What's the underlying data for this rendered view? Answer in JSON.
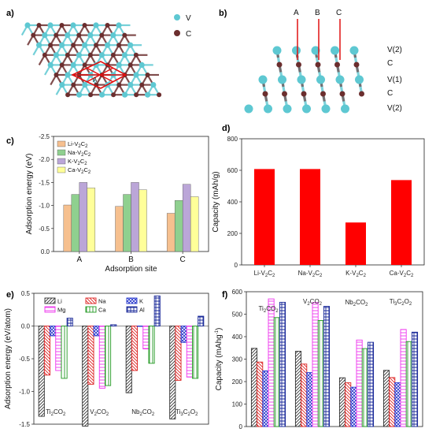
{
  "panels": {
    "a": {
      "label": "a)",
      "legend": [
        {
          "name": "V",
          "color": "#5ec8d2"
        },
        {
          "name": "C",
          "color": "#6b2e2e"
        }
      ],
      "site_label": "A"
    },
    "b": {
      "label": "b)",
      "sites": [
        "A",
        "B",
        "C"
      ],
      "layers": [
        "V(2)",
        "C",
        "V(1)",
        "C",
        "V(2)"
      ]
    }
  },
  "colors": {
    "V": "#5ec8d2",
    "C": "#6b2e2e",
    "capacity_bar": "#ff0000"
  },
  "chart_data": [
    {
      "panel": "c)",
      "type": "bar",
      "xlabel": "Adsorption site",
      "ylabel": "Adsorption energy (eV)",
      "categories": [
        "A",
        "B",
        "C"
      ],
      "ylim": [
        0.0,
        -2.5
      ],
      "yticks": [
        "-2.5",
        "-2.0",
        "-1.5",
        "-1.0",
        "-0.5",
        "0.0"
      ],
      "legend_position": "top-left",
      "series": [
        {
          "name": "Li-V",
          "sub": "2",
          "name2": "C",
          "sub2": "2",
          "color": "#f6c08f",
          "values": [
            -1.01,
            -0.98,
            -0.83
          ]
        },
        {
          "name": "Na-V",
          "sub": "2",
          "name2": "C",
          "sub2": "2",
          "color": "#8fd08f",
          "values": [
            -1.24,
            -1.24,
            -1.11
          ]
        },
        {
          "name": "K-V",
          "sub": "2",
          "name2": "C",
          "sub2": "2",
          "color": "#bba6d8",
          "values": [
            -1.5,
            -1.5,
            -1.46
          ]
        },
        {
          "name": "Ca-V",
          "sub": "2",
          "name2": "C",
          "sub2": "2",
          "color": "#ffff99",
          "values": [
            -1.38,
            -1.34,
            -1.19
          ]
        }
      ]
    },
    {
      "panel": "d)",
      "type": "bar",
      "ylabel": "Capacity (mAh/g)",
      "ylim": [
        0,
        800
      ],
      "yticks": [
        "0",
        "200",
        "400",
        "600",
        "800"
      ],
      "categories": [
        {
          "pre": "Li-V",
          "sub": "2",
          "mid": "C",
          "sub2": "2"
        },
        {
          "pre": "Na-V",
          "sub": "2",
          "mid": "C",
          "sub2": "2"
        },
        {
          "pre": "K-V",
          "sub": "2",
          "mid": "C",
          "sub2": "2"
        },
        {
          "pre": "Ca-V",
          "sub": "2",
          "mid": "C",
          "sub2": "2"
        }
      ],
      "values": [
        608,
        608,
        269,
        538
      ]
    },
    {
      "panel": "e)",
      "type": "bar",
      "ylabel": "Adsorption energy (eV/atom)",
      "ylim": [
        -1.5,
        0.5
      ],
      "yticks": [
        "0.5",
        "0.0",
        "-0.5",
        "-1.0",
        "-1.5"
      ],
      "categories": [
        {
          "pre": "Ti",
          "sub": "2",
          "mid": "CO",
          "sub2": "2",
          "post": "",
          "sub3": ""
        },
        {
          "pre": "V",
          "sub": "2",
          "mid": "CO",
          "sub2": "2",
          "post": "",
          "sub3": ""
        },
        {
          "pre": "Nb",
          "sub": "2",
          "mid": "CO",
          "sub2": "2",
          "post": "",
          "sub3": ""
        },
        {
          "pre": "Ti",
          "sub": "3",
          "mid": "C",
          "sub2": "2",
          "post": "O",
          "sub3": "2"
        }
      ],
      "series": [
        {
          "name": "Li",
          "color": "#333333",
          "pattern": "diag1",
          "values": [
            -1.38,
            -1.53,
            -1.02,
            -1.42
          ]
        },
        {
          "name": "Na",
          "color": "#dd2222",
          "pattern": "diag2",
          "values": [
            -0.75,
            -0.89,
            -0.68,
            -0.83
          ]
        },
        {
          "name": "K",
          "color": "#2233cc",
          "pattern": "cross",
          "values": [
            -0.15,
            -0.15,
            0.0,
            -0.25
          ]
        },
        {
          "name": "Mg",
          "color": "#ee33ee",
          "pattern": "hlines",
          "values": [
            -0.68,
            -0.95,
            -0.35,
            -0.78
          ]
        },
        {
          "name": "Ca",
          "color": "#229922",
          "pattern": "vlines",
          "values": [
            -0.8,
            -0.91,
            -0.57,
            -0.8
          ]
        },
        {
          "name": "Al",
          "color": "#1a2a99",
          "pattern": "grid",
          "values": [
            0.12,
            0.02,
            0.46,
            0.15
          ]
        }
      ]
    },
    {
      "panel": "f)",
      "type": "bar",
      "ylabel": "Capacity (mAhg",
      "ylabel_sup": "-1",
      "ylabel_end": ")",
      "ylim": [
        0,
        600
      ],
      "yticks": [
        "0",
        "100",
        "200",
        "300",
        "400",
        "500",
        "600"
      ],
      "categories": [
        {
          "pre": "Ti",
          "sub": "2",
          "mid": "CO",
          "sub2": "2",
          "post": "",
          "sub3": ""
        },
        {
          "pre": "V",
          "sub": "2",
          "mid": "CO",
          "sub2": "2",
          "post": "",
          "sub3": ""
        },
        {
          "pre": "Nb",
          "sub": "2",
          "mid": "CO",
          "sub2": "2",
          "post": "",
          "sub3": ""
        },
        {
          "pre": "Ti",
          "sub": "3",
          "mid": "C",
          "sub2": "2",
          "post": "O",
          "sub3": "2"
        }
      ],
      "series": [
        {
          "name": "Li",
          "color": "#333333",
          "pattern": "diag1",
          "values": [
            348,
            335,
            217,
            250
          ]
        },
        {
          "name": "Na",
          "color": "#dd2222",
          "pattern": "diag2",
          "values": [
            287,
            278,
            195,
            218
          ]
        },
        {
          "name": "K",
          "color": "#2233cc",
          "pattern": "cross",
          "values": [
            248,
            240,
            175,
            195
          ]
        },
        {
          "name": "Mg",
          "color": "#ee33ee",
          "pattern": "hlines",
          "values": [
            568,
            552,
            385,
            432
          ]
        },
        {
          "name": "Ca",
          "color": "#229922",
          "pattern": "vlines",
          "values": [
            485,
            472,
            347,
            378
          ]
        },
        {
          "name": "Al",
          "color": "#1a2a99",
          "pattern": "grid",
          "values": [
            553,
            535,
            375,
            420
          ]
        }
      ]
    }
  ]
}
